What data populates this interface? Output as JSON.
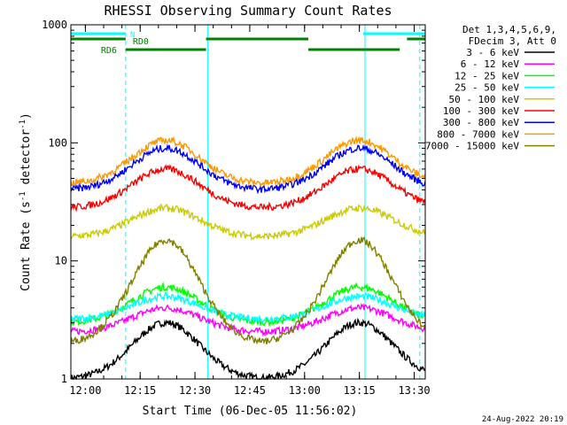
{
  "chart_data": {
    "type": "line",
    "title": "RHESSI Observing Summary Count Rates",
    "xlabel": "Start Time (06-Dec-05 11:56:02)",
    "ylabel_main": "Count Rate (s",
    "ylabel_sup1": "-1",
    "ylabel_mid": " detector",
    "ylabel_sup2": "-1",
    "ylabel_end": ")",
    "yscale": "log",
    "ylim": [
      1,
      1000
    ],
    "xlim_minutes": [
      0,
      97
    ],
    "x_tick_labels": [
      "12:00",
      "12:15",
      "12:30",
      "12:45",
      "13:00",
      "13:15",
      "13:30"
    ],
    "x_tick_minutes": [
      3.97,
      18.97,
      33.97,
      48.97,
      63.97,
      78.97,
      93.97
    ],
    "y_tick_labels": [
      "1",
      "10",
      "100",
      "1000"
    ],
    "legend_header": [
      "Det 1,3,4,5,6,9,",
      "FDecim 3, Att 0"
    ],
    "legend": [
      {
        "label": "3 - 6 keV",
        "color": "#000000"
      },
      {
        "label": "6 - 12 keV",
        "color": "#ff00ff"
      },
      {
        "label": "12 - 25 keV",
        "color": "#00ff00"
      },
      {
        "label": "25 - 50 keV",
        "color": "#00ffff"
      },
      {
        "label": "50 - 100 keV",
        "color": "#cccc00"
      },
      {
        "label": "100 - 300 keV",
        "color": "#ff0000"
      },
      {
        "label": "300 - 800 keV",
        "color": "#0000ff"
      },
      {
        "label": "800 - 7000 keV",
        "color": "#ff9900"
      },
      {
        "label": "7000 - 15000 keV",
        "color": "#808000"
      }
    ],
    "flag_labels": {
      "n": "N",
      "rd0": "RD0",
      "rd6": "RD6"
    },
    "flag_bars": {
      "n": {
        "color": "#00ffff",
        "segments": [
          [
            0,
            15
          ],
          [
            80,
            97
          ]
        ]
      },
      "rd0": {
        "color": "#008000",
        "segments": [
          [
            0,
            15
          ],
          [
            37,
            65
          ],
          [
            92,
            97
          ]
        ]
      },
      "rd6": {
        "color": "#008000",
        "segments": [
          [
            15,
            37
          ],
          [
            65,
            90
          ]
        ]
      }
    },
    "orbit_boundaries_solid": [
      37.5,
      80.5
    ],
    "orbit_boundaries_dashed": [
      15,
      95.5
    ],
    "series_envelope": {
      "3 - 6 keV": {
        "low": 1,
        "high": 3
      },
      "6 - 12 keV": {
        "low": 2.5,
        "high": 4
      },
      "12 - 25 keV": {
        "low": 3,
        "high": 6
      },
      "25 - 50 keV": {
        "low": 3.2,
        "high": 5
      },
      "50 - 100 keV": {
        "low": 16,
        "high": 28
      },
      "100 - 300 keV": {
        "low": 28,
        "high": 60
      },
      "300 - 800 keV": {
        "low": 40,
        "high": 90
      },
      "800 - 7000 keV": {
        "low": 45,
        "high": 105
      },
      "7000 - 15000 keV": {
        "low": 2,
        "high": 15
      }
    },
    "grid": false
  },
  "footer_timestamp": "24-Aug-2022 20:19"
}
